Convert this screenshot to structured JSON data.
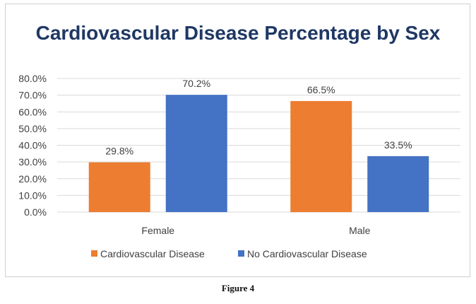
{
  "colors": {
    "series_1": "#ED7D31",
    "series_2": "#4472C4",
    "title": "#1F3864",
    "text": "#404040",
    "grid": "#D9D9D9"
  },
  "caption": "Figure 4",
  "chart_data": {
    "type": "bar",
    "title": "Cardiovascular Disease Percentage by Sex",
    "xlabel": "",
    "ylabel": "",
    "categories": [
      "Female",
      "Male"
    ],
    "series": [
      {
        "name": "Cardiovascular Disease",
        "values": [
          29.8,
          66.5
        ],
        "labels": [
          "29.8%",
          "66.5%"
        ]
      },
      {
        "name": "No Cardiovascular Disease",
        "values": [
          70.2,
          33.5
        ],
        "labels": [
          "70.2%",
          "33.5%"
        ]
      }
    ],
    "ylim": [
      0,
      80
    ],
    "yticks": [
      "0.0%",
      "10.0%",
      "20.0%",
      "30.0%",
      "40.0%",
      "50.0%",
      "60.0%",
      "70.0%",
      "80.0%"
    ],
    "grid": true,
    "legend_position": "bottom"
  }
}
